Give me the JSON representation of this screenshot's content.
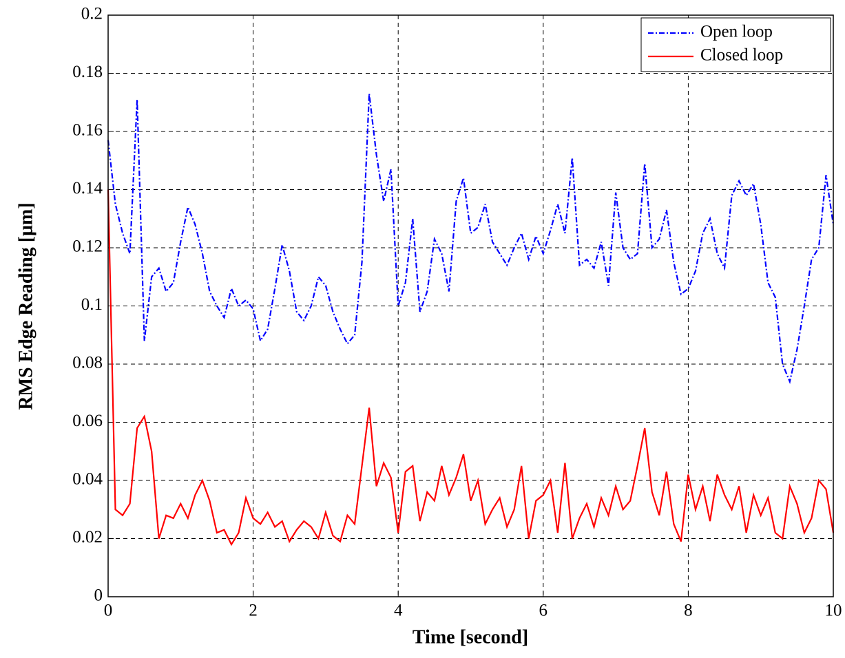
{
  "chart_data": {
    "type": "line",
    "xlabel": "Time [second]",
    "ylabel": "RMS Edge Reading [μm]",
    "x": [
      0,
      0.1,
      0.2,
      0.3,
      0.4,
      0.5,
      0.6,
      0.7,
      0.8,
      0.9,
      1,
      1.1,
      1.2,
      1.3,
      1.4,
      1.5,
      1.6,
      1.7,
      1.8,
      1.9,
      2,
      2.1,
      2.2,
      2.3,
      2.4,
      2.5,
      2.6,
      2.7,
      2.8,
      2.9,
      3,
      3.1,
      3.2,
      3.3,
      3.4,
      3.5,
      3.6,
      3.7,
      3.8,
      3.9,
      4,
      4.1,
      4.2,
      4.3,
      4.4,
      4.5,
      4.6,
      4.7,
      4.8,
      4.9,
      5,
      5.1,
      5.2,
      5.3,
      5.4,
      5.5,
      5.6,
      5.7,
      5.8,
      5.9,
      6,
      6.1,
      6.2,
      6.3,
      6.4,
      6.5,
      6.6,
      6.7,
      6.8,
      6.9,
      7,
      7.1,
      7.2,
      7.3,
      7.4,
      7.5,
      7.6,
      7.7,
      7.8,
      7.9,
      8,
      8.1,
      8.2,
      8.3,
      8.4,
      8.5,
      8.6,
      8.7,
      8.8,
      8.9,
      9,
      9.1,
      9.2,
      9.3,
      9.4,
      9.5,
      9.6,
      9.7,
      9.8,
      9.9,
      10
    ],
    "series": [
      {
        "name": "Open loop",
        "color": "#0000ff",
        "dash": "dashdot",
        "values": [
          0.157,
          0.135,
          0.125,
          0.118,
          0.171,
          0.088,
          0.11,
          0.113,
          0.105,
          0.108,
          0.122,
          0.134,
          0.128,
          0.118,
          0.105,
          0.1,
          0.096,
          0.106,
          0.1,
          0.102,
          0.099,
          0.088,
          0.092,
          0.106,
          0.121,
          0.112,
          0.098,
          0.095,
          0.1,
          0.11,
          0.107,
          0.098,
          0.092,
          0.087,
          0.09,
          0.115,
          0.173,
          0.152,
          0.136,
          0.147,
          0.1,
          0.108,
          0.13,
          0.098,
          0.105,
          0.123,
          0.118,
          0.105,
          0.136,
          0.144,
          0.125,
          0.127,
          0.135,
          0.122,
          0.118,
          0.114,
          0.12,
          0.125,
          0.116,
          0.124,
          0.118,
          0.126,
          0.135,
          0.125,
          0.151,
          0.114,
          0.116,
          0.113,
          0.122,
          0.107,
          0.139,
          0.12,
          0.116,
          0.118,
          0.149,
          0.12,
          0.123,
          0.133,
          0.115,
          0.104,
          0.106,
          0.112,
          0.125,
          0.13,
          0.118,
          0.113,
          0.138,
          0.143,
          0.138,
          0.142,
          0.128,
          0.108,
          0.103,
          0.08,
          0.074,
          0.085,
          0.1,
          0.116,
          0.12,
          0.145,
          0.128
        ]
      },
      {
        "name": "Closed loop",
        "color": "#ff0000",
        "dash": "solid",
        "values": [
          0.14,
          0.03,
          0.028,
          0.032,
          0.058,
          0.062,
          0.05,
          0.02,
          0.028,
          0.027,
          0.032,
          0.027,
          0.035,
          0.04,
          0.033,
          0.022,
          0.023,
          0.018,
          0.022,
          0.034,
          0.027,
          0.025,
          0.029,
          0.024,
          0.026,
          0.019,
          0.023,
          0.026,
          0.024,
          0.02,
          0.029,
          0.021,
          0.019,
          0.028,
          0.025,
          0.045,
          0.065,
          0.038,
          0.046,
          0.041,
          0.022,
          0.043,
          0.045,
          0.026,
          0.036,
          0.033,
          0.045,
          0.035,
          0.041,
          0.049,
          0.033,
          0.04,
          0.025,
          0.03,
          0.034,
          0.024,
          0.03,
          0.045,
          0.02,
          0.033,
          0.035,
          0.04,
          0.022,
          0.046,
          0.02,
          0.027,
          0.032,
          0.024,
          0.034,
          0.028,
          0.038,
          0.03,
          0.033,
          0.045,
          0.058,
          0.036,
          0.028,
          0.043,
          0.025,
          0.019,
          0.042,
          0.03,
          0.038,
          0.026,
          0.042,
          0.035,
          0.03,
          0.038,
          0.022,
          0.035,
          0.028,
          0.034,
          0.022,
          0.02,
          0.038,
          0.032,
          0.022,
          0.027,
          0.04,
          0.037,
          0.022
        ]
      }
    ],
    "xlim": [
      0,
      10
    ],
    "xticks": [
      0,
      2,
      4,
      6,
      8,
      10
    ],
    "ylim": [
      0,
      0.2
    ],
    "yticks": [
      0,
      0.02,
      0.04,
      0.06,
      0.08,
      0.1,
      0.12,
      0.14,
      0.16,
      0.18,
      0.2
    ],
    "grid": true,
    "legend": "upper right"
  }
}
